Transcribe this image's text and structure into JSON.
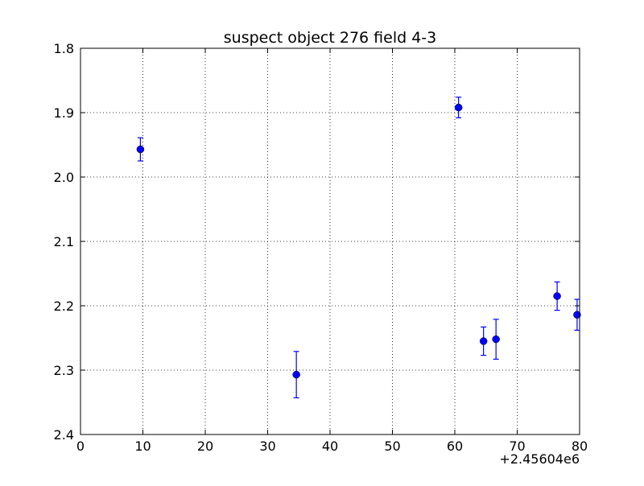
{
  "chart_data": {
    "type": "scatter",
    "title": "suspect object 276 field 4-3",
    "xlabel": "",
    "ylabel": "",
    "xlim": [
      0,
      80
    ],
    "ylim": [
      2.4,
      1.8
    ],
    "y_inverted": true,
    "x_offset_label": "+2.45604e6",
    "grid": true,
    "x_ticks": [
      "0",
      "10",
      "20",
      "30",
      "40",
      "50",
      "60",
      "70",
      "80"
    ],
    "y_ticks": [
      "1.8",
      "1.9",
      "2.0",
      "2.1",
      "2.2",
      "2.3",
      "2.4"
    ],
    "series": [
      {
        "marker": "circle",
        "color": "#0000ff",
        "points": [
          {
            "x": 9.6,
            "y": 1.957,
            "err_low": 0.018,
            "err_high": 0.018
          },
          {
            "x": 34.6,
            "y": 2.307,
            "err_low": 0.036,
            "err_high": 0.036
          },
          {
            "x": 60.6,
            "y": 1.892,
            "err_low": 0.016,
            "err_high": 0.016
          },
          {
            "x": 64.6,
            "y": 2.255,
            "err_low": 0.022,
            "err_high": 0.022
          },
          {
            "x": 66.6,
            "y": 2.252,
            "err_low": 0.031,
            "err_high": 0.031
          },
          {
            "x": 76.4,
            "y": 2.185,
            "err_low": 0.022,
            "err_high": 0.022
          },
          {
            "x": 79.6,
            "y": 2.214,
            "err_low": 0.024,
            "err_high": 0.024
          }
        ]
      }
    ]
  }
}
